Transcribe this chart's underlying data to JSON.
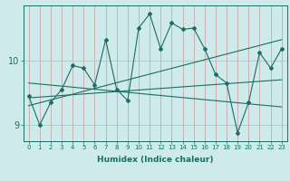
{
  "xlabel": "Humidex (Indice chaleur)",
  "ylabel": "",
  "xlim": [
    -0.5,
    23.5
  ],
  "ylim": [
    8.75,
    10.85
  ],
  "background_color": "#ceeaea",
  "vgrid_color": "#c8a8a8",
  "hgrid_color": "#aacaca",
  "line_color": "#1a6e65",
  "x_ticks": [
    0,
    1,
    2,
    3,
    4,
    5,
    6,
    7,
    8,
    9,
    10,
    11,
    12,
    13,
    14,
    15,
    16,
    17,
    18,
    19,
    20,
    21,
    22,
    23
  ],
  "y_ticks": [
    9,
    10
  ],
  "main_x": [
    0,
    1,
    2,
    3,
    4,
    5,
    6,
    7,
    8,
    9,
    10,
    11,
    12,
    13,
    14,
    15,
    16,
    17,
    18,
    19,
    20,
    21,
    22,
    23
  ],
  "main_y": [
    9.45,
    9.0,
    9.35,
    9.55,
    9.92,
    9.88,
    9.62,
    10.32,
    9.55,
    9.38,
    10.5,
    10.72,
    10.18,
    10.58,
    10.48,
    10.5,
    10.18,
    9.78,
    9.65,
    8.88,
    9.35,
    10.12,
    9.88,
    10.18
  ],
  "trend1_x": [
    0,
    23
  ],
  "trend1_y": [
    9.42,
    9.7
  ],
  "trend2_x": [
    0,
    23
  ],
  "trend2_y": [
    9.3,
    10.32
  ],
  "trend3_x": [
    0,
    23
  ],
  "trend3_y": [
    9.65,
    9.28
  ]
}
